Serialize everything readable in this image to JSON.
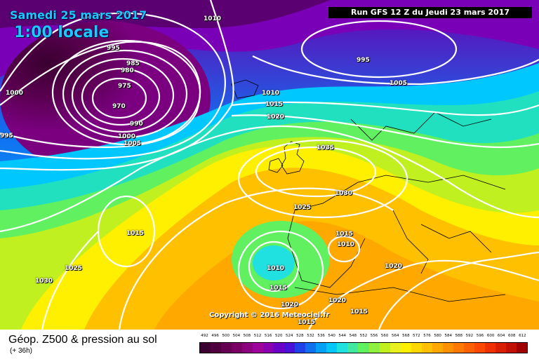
{
  "overlay": {
    "date_line": "Samedi 25 mars 2017",
    "local_time": "1:00 locale",
    "run_info": "Run GFS 12 Z du Jeudi 23 mars 2017",
    "copyright": "Copyright © 2016 Meteociel.fr"
  },
  "footer": {
    "title": "Géop. Z500 & pression au sol",
    "subtitle": "(+ 36h)"
  },
  "isobar_labels": [
    "1010",
    "995",
    "985",
    "980",
    "975",
    "970",
    "990",
    "1000",
    "1005",
    "1000",
    "995",
    "1010",
    "1015",
    "1020",
    "995",
    "1005",
    "1035",
    "1030",
    "1025",
    "1015",
    "1015",
    "1010",
    "1020",
    "1025",
    "1030",
    "1010",
    "1015",
    "1020",
    "1020",
    "1015",
    "1015"
  ],
  "scale": {
    "labels": [
      "492",
      "496",
      "500",
      "504",
      "508",
      "512",
      "516",
      "520",
      "524",
      "528",
      "532",
      "536",
      "540",
      "544",
      "548",
      "552",
      "556",
      "560",
      "564",
      "568",
      "572",
      "576",
      "580",
      "584",
      "588",
      "592",
      "596",
      "600",
      "604",
      "608",
      "612"
    ],
    "colors": [
      "#3a0030",
      "#50003f",
      "#660050",
      "#7a0066",
      "#8c0080",
      "#9e009a",
      "#8a00b0",
      "#6a00c8",
      "#4a10d8",
      "#2040e8",
      "#1070f0",
      "#00a0f8",
      "#00c8ff",
      "#20e0e0",
      "#40e8a0",
      "#60f060",
      "#90f040",
      "#c0f020",
      "#e8f020",
      "#fff000",
      "#ffd800",
      "#ffc000",
      "#ffa800",
      "#ff9000",
      "#ff7800",
      "#ff6000",
      "#ff4800",
      "#f03000",
      "#d82000",
      "#c01000",
      "#a00000"
    ]
  },
  "colors": {
    "map_accent": "#1ec8ff",
    "run_box_bg": "#000000"
  }
}
